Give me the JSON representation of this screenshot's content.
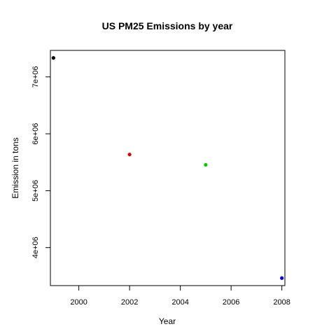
{
  "chart_data": {
    "type": "scatter",
    "title": "US PM25 Emissions by year",
    "xlabel": "Year",
    "ylabel": "Emission in tons",
    "x": [
      1999,
      2002,
      2005,
      2008
    ],
    "y": [
      7332967,
      5635780,
      5454703,
      3464206
    ],
    "point_colors": [
      "#000000",
      "#DF0000",
      "#00CD00",
      "#0000FF"
    ],
    "xlim": [
      1998.88,
      2008.12
    ],
    "ylim": [
      3331775,
      7465398
    ],
    "xticks": [
      2000,
      2002,
      2004,
      2006,
      2008
    ],
    "xtick_labels": [
      "2000",
      "2002",
      "2004",
      "2006",
      "2008"
    ],
    "yticks": [
      4000000,
      5000000,
      6000000,
      7000000
    ],
    "ytick_labels": [
      "4e+06",
      "5e+06",
      "6e+06",
      "7e+06"
    ],
    "grid": false,
    "legend": false
  }
}
